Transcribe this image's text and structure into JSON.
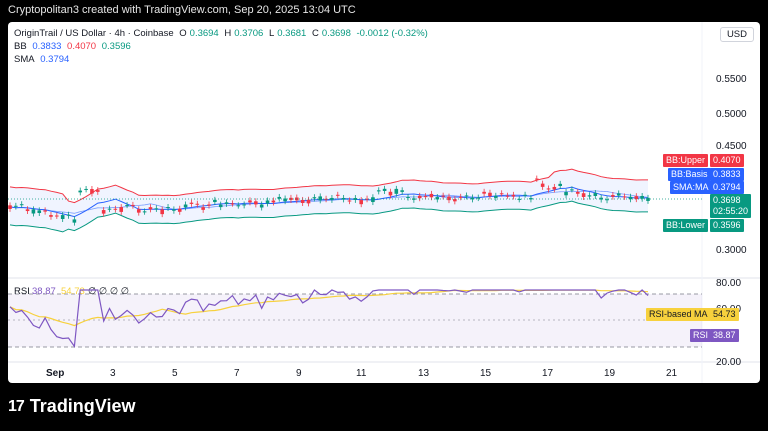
{
  "caption": "Cryptopolitan3 created with TradingView.com, Sep 20, 2025 13:04 UTC",
  "brand": {
    "logo": "17",
    "name": "TradingView"
  },
  "header": {
    "title": "OriginTrail / US Dollar · 4h · Coinbase",
    "o_label": "O",
    "o": "0.3694",
    "h_label": "H",
    "h": "0.3706",
    "l_label": "L",
    "l": "0.3681",
    "c_label": "C",
    "c": "0.3698",
    "change": "-0.0012 (-0.32%)",
    "currency": "USD"
  },
  "indicators": {
    "bb": {
      "label": "BB",
      "basis": "0.3833",
      "upper": "0.4070",
      "lower": "0.3596"
    },
    "sma": {
      "label": "SMA",
      "value": "0.3794"
    },
    "rsi": {
      "label": "RSI",
      "value": "38.87",
      "ma": "54.73",
      "extra": "∅ ∅ ∅ ∅"
    }
  },
  "price_axis": [
    "0.5500",
    "0.5000",
    "0.4500",
    "0.3000"
  ],
  "rsi_axis": [
    "80.00",
    "60.00",
    "20.00"
  ],
  "time_axis": [
    "Sep",
    "3",
    "5",
    "7",
    "9",
    "11",
    "13",
    "15",
    "17",
    "19",
    "21"
  ],
  "price_tags": {
    "bb_upper": {
      "label": "BB:Upper",
      "value": "0.4070"
    },
    "bb_basis": {
      "label": "BB:Basis",
      "value": "0.3833"
    },
    "sma": {
      "label": "SMA:MA",
      "value": "0.3794"
    },
    "last": {
      "value": "0.3698",
      "countdown": "02:55:20"
    },
    "bb_lower": {
      "label": "BB:Lower",
      "value": "0.3596"
    }
  },
  "rsi_tags": {
    "ma": {
      "label": "RSI-based MA",
      "value": "54.73"
    },
    "rsi": {
      "label": "RSI",
      "value": "38.87"
    }
  },
  "colors": {
    "up": "#089981",
    "down": "#f23645",
    "bb_basis": "#2962ff",
    "bb_upper": "#f23645",
    "bb_lower": "#089981",
    "rsi": "#7e57c2",
    "rsi_ma": "#f7d13d"
  }
}
